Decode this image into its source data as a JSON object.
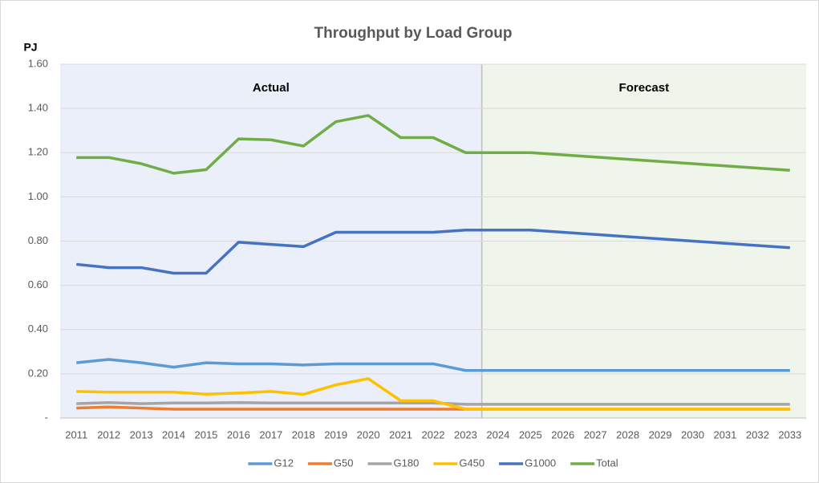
{
  "chart_data": {
    "type": "line",
    "title": "Throughput by Load Group",
    "y_label": "PJ",
    "categories": [
      "2011",
      "2012",
      "2013",
      "2014",
      "2015",
      "2016",
      "2017",
      "2018",
      "2019",
      "2020",
      "2021",
      "2022",
      "2023",
      "2024",
      "2025",
      "2026",
      "2027",
      "2028",
      "2029",
      "2030",
      "2031",
      "2032",
      "2033"
    ],
    "series": [
      {
        "name": "G12",
        "color": "#5b9bd5",
        "values": [
          0.25,
          0.265,
          0.25,
          0.23,
          0.25,
          0.245,
          0.245,
          0.24,
          0.245,
          0.245,
          0.245,
          0.245,
          0.215,
          0.215,
          0.215,
          0.215,
          0.215,
          0.215,
          0.215,
          0.215,
          0.215,
          0.215,
          0.215
        ]
      },
      {
        "name": "G50",
        "color": "#ed7d31",
        "values": [
          0.045,
          0.05,
          0.045,
          0.04,
          0.04,
          0.04,
          0.04,
          0.04,
          0.04,
          0.04,
          0.04,
          0.04,
          0.04,
          0.04,
          0.04,
          0.04,
          0.04,
          0.04,
          0.04,
          0.04,
          0.04,
          0.04,
          0.04
        ]
      },
      {
        "name": "G180",
        "color": "#a5a5a5",
        "values": [
          0.065,
          0.07,
          0.065,
          0.068,
          0.068,
          0.07,
          0.068,
          0.068,
          0.068,
          0.068,
          0.068,
          0.068,
          0.062,
          0.062,
          0.062,
          0.062,
          0.062,
          0.062,
          0.062,
          0.062,
          0.062,
          0.062,
          0.062
        ]
      },
      {
        "name": "G450",
        "color": "#ffc000",
        "values": [
          0.12,
          0.117,
          0.117,
          0.117,
          0.108,
          0.113,
          0.12,
          0.107,
          0.15,
          0.178,
          0.078,
          0.078,
          0.04,
          0.04,
          0.04,
          0.04,
          0.04,
          0.04,
          0.04,
          0.04,
          0.04,
          0.04,
          0.04
        ]
      },
      {
        "name": "G1000",
        "color": "#4472c4",
        "values": [
          0.695,
          0.68,
          0.68,
          0.655,
          0.655,
          0.795,
          0.785,
          0.775,
          0.84,
          0.84,
          0.84,
          0.84,
          0.85,
          0.85,
          0.85,
          0.84,
          0.83,
          0.82,
          0.81,
          0.8,
          0.79,
          0.78,
          0.77
        ]
      },
      {
        "name": "Total",
        "color": "#70ad47",
        "values": [
          1.178,
          1.178,
          1.15,
          1.107,
          1.123,
          1.262,
          1.258,
          1.23,
          1.34,
          1.368,
          1.268,
          1.268,
          1.2,
          1.2,
          1.2,
          1.19,
          1.18,
          1.17,
          1.16,
          1.15,
          1.14,
          1.13,
          1.12
        ]
      }
    ],
    "regions": [
      {
        "label": "Actual",
        "from": "2011",
        "to": "2023",
        "color": "#eaeff9"
      },
      {
        "label": "Forecast",
        "from": "2024",
        "to": "2033",
        "color": "#eff5ea"
      }
    ],
    "ylim": [
      0,
      1.6
    ],
    "yticks": [
      {
        "value": 0,
        "label": "-"
      },
      {
        "value": 0.2,
        "label": "0.20"
      },
      {
        "value": 0.4,
        "label": "0.40"
      },
      {
        "value": 0.6,
        "label": "0.60"
      },
      {
        "value": 0.8,
        "label": "0.80"
      },
      {
        "value": 1.0,
        "label": "1.00"
      },
      {
        "value": 1.2,
        "label": "1.20"
      },
      {
        "value": 1.4,
        "label": "1.40"
      },
      {
        "value": 1.6,
        "label": "1.60"
      }
    ],
    "grid": true,
    "legend": "bottom"
  }
}
